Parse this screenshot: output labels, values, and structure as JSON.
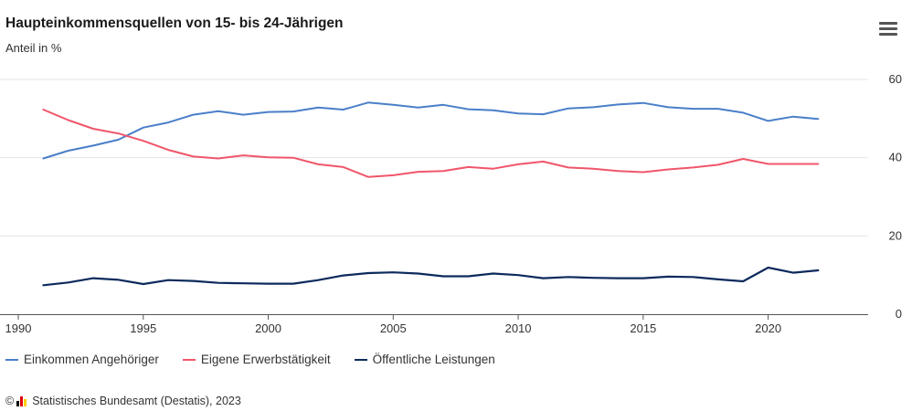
{
  "header": {
    "title": "Haupteinkommensquellen von 15- bis 24-Jährigen",
    "subtitle": "Anteil in %"
  },
  "menu": {
    "icon": "hamburger-menu-icon"
  },
  "credits": {
    "copyright_symbol": "©",
    "text": "Statistisches Bundesamt (Destatis), 2023",
    "logo_colors": [
      "#000000",
      "#dd0000",
      "#ffcc00"
    ]
  },
  "chart_data": {
    "type": "line",
    "title": "Haupteinkommensquellen von 15- bis 24-Jährigen",
    "subtitle": "Anteil in %",
    "xlabel": "",
    "ylabel": "",
    "x": [
      1991,
      1992,
      1993,
      1994,
      1995,
      1996,
      1997,
      1998,
      1999,
      2000,
      2001,
      2002,
      2003,
      2004,
      2005,
      2006,
      2007,
      2008,
      2009,
      2010,
      2011,
      2012,
      2013,
      2014,
      2015,
      2016,
      2017,
      2018,
      2019,
      2020,
      2021,
      2022
    ],
    "xlim": [
      1990,
      2024
    ],
    "ylim": [
      0,
      60
    ],
    "x_ticks": [
      1990,
      1995,
      2000,
      2005,
      2010,
      2015,
      2020
    ],
    "y_ticks": [
      0,
      20,
      40,
      60
    ],
    "y_axis_position": "right",
    "grid": "horizontal",
    "legend_position": "bottom-left",
    "series": [
      {
        "name": "Einkommen Angehöriger",
        "color": "#4a7fc8",
        "values": [
          39.8,
          41.8,
          43.1,
          44.6,
          47.7,
          49.0,
          51.0,
          51.9,
          51.0,
          51.7,
          51.8,
          52.8,
          52.3,
          54.1,
          53.5,
          52.8,
          53.5,
          52.4,
          52.1,
          51.3,
          51.1,
          52.6,
          52.9,
          53.6,
          54.0,
          52.9,
          52.5,
          52.5,
          51.5,
          49.4,
          50.5,
          49.9
        ]
      },
      {
        "name": "Eigene Erwerbstätigkeit",
        "color": "#f0566a",
        "values": [
          52.3,
          49.6,
          47.4,
          46.2,
          44.3,
          42.0,
          40.3,
          39.8,
          40.6,
          40.1,
          40.0,
          38.3,
          37.6,
          35.1,
          35.5,
          36.4,
          36.6,
          37.6,
          37.2,
          38.3,
          39.0,
          37.5,
          37.2,
          36.6,
          36.3,
          37.0,
          37.5,
          38.2,
          39.7,
          38.4,
          38.4,
          38.4
        ]
      },
      {
        "name": "Öffentliche Leistungen",
        "color": "#0c2a5c",
        "values": [
          7.4,
          8.1,
          9.2,
          8.8,
          7.7,
          8.7,
          8.5,
          8.0,
          7.9,
          7.8,
          7.8,
          8.7,
          9.9,
          10.5,
          10.7,
          10.4,
          9.7,
          9.7,
          10.4,
          10.0,
          9.2,
          9.5,
          9.3,
          9.2,
          9.2,
          9.6,
          9.5,
          8.9,
          8.4,
          11.9,
          10.6,
          11.2
        ]
      }
    ]
  }
}
